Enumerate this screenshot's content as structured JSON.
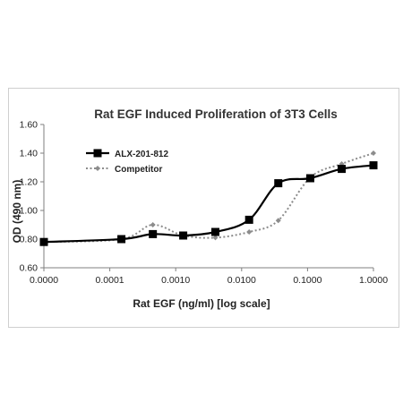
{
  "chart_data": {
    "type": "line",
    "title": "Rat EGF Induced Proliferation of 3T3 Cells",
    "xlabel": "Rat EGF (ng/ml) [log scale]",
    "ylabel": "OD (490 nm)",
    "xscale": "log",
    "xlim": [
      1e-05,
      1.0
    ],
    "ylim": [
      0.6,
      1.6
    ],
    "x_tick_labels": [
      "0.0000",
      "0.0001",
      "0.0010",
      "0.0100",
      "0.1000",
      "1.0000"
    ],
    "x_tick_values": [
      1e-05,
      0.0001,
      0.001,
      0.01,
      0.1,
      1.0
    ],
    "y_tick_labels": [
      "0.60",
      "0.80",
      "1.00",
      "1.20",
      "1.40",
      "1.60"
    ],
    "y_tick_values": [
      0.6,
      0.8,
      1.0,
      1.2,
      1.4,
      1.6
    ],
    "grid": false,
    "legend_position": "top-left",
    "series": [
      {
        "name": "ALX-201-812",
        "color": "#000000",
        "style": "solid-square-markers",
        "x": [
          1e-05,
          0.00015,
          0.00045,
          0.0013,
          0.004,
          0.013,
          0.036,
          0.11,
          0.33,
          1.0
        ],
        "y": [
          0.78,
          0.8,
          0.835,
          0.825,
          0.85,
          0.935,
          1.19,
          1.225,
          1.29,
          1.315
        ]
      },
      {
        "name": "Competitor",
        "color": "#8c8c8c",
        "style": "dotted-diamond-markers",
        "x": [
          1e-05,
          0.00015,
          0.00045,
          0.0013,
          0.004,
          0.013,
          0.036,
          0.11,
          0.33,
          1.0
        ],
        "y": [
          0.78,
          0.8,
          0.9,
          0.825,
          0.81,
          0.85,
          0.93,
          1.23,
          1.325,
          1.4
        ]
      }
    ]
  }
}
